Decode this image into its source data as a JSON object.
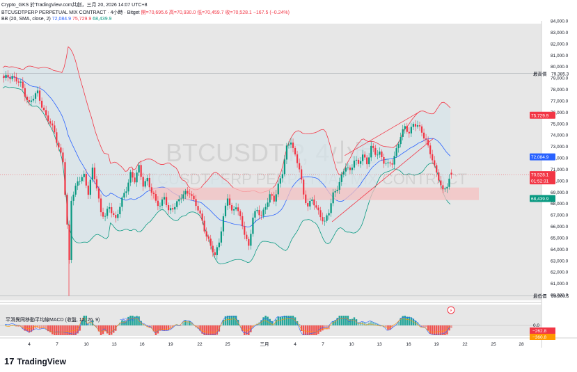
{
  "header": {
    "publisher_line": "Crypto_GKS 於TradingView.com共創，三月 20, 2026 14:07 UTC+8"
  },
  "symbol_line": {
    "name": "BTCUSDTPERP PERPETUAL MIX CONTRACT · 4小時 · Bitget",
    "open": "開=70,695.6",
    "high": "高=70,930.0",
    "low": "低=70,459.7",
    "close": "收=70,528.1",
    "change": "−167.5 (−0.24%)"
  },
  "bb_line": {
    "label": "BB (20, SMA, close, 2)",
    "basis": "72,084.9",
    "upper": "75,729.9",
    "lower": "68,439.9"
  },
  "watermark": {
    "big": "BTCUSDT.P, 4小時",
    "small": "BTCUSDTPERP PERPETUAL MIX CONTRACT"
  },
  "price_axis": {
    "ticks": [
      "84,000.0",
      "83,000.0",
      "82,000.0",
      "81,000.0",
      "80,000.0",
      "79,000.0",
      "78,000.0",
      "77,000.0",
      "76,000.0",
      "75,000.0",
      "74,000.0",
      "73,000.0",
      "72,000.0",
      "71,000.0",
      "70,000.0",
      "69,000.0",
      "68,000.0",
      "67,000.0",
      "66,000.0",
      "65,000.0",
      "64,000.0",
      "63,000.0",
      "62,000.0",
      "61,000.0",
      "60,000.0"
    ],
    "high_label": "最高價",
    "high_value": "79,385.3",
    "low_label": "最低價",
    "low_value": "59,900.5",
    "upper_badge": "75,729.9",
    "basis_badge": "72,084.9",
    "close_badge": "70,528.1",
    "countdown_badge": "01:52:31",
    "lower_badge": "68,439.9"
  },
  "macd": {
    "title": "平滑異同移動平均線MACD (收盤, 12, 26, 9)",
    "marker_value": "−623.5",
    "axis_tick": "0.0",
    "badge_red": "−262.8",
    "badge_orange": "−360.8"
  },
  "time_axis": {
    "ticks": [
      "4",
      "7",
      "10",
      "13",
      "16",
      "19",
      "22",
      "25",
      "三月",
      "4",
      "7",
      "10",
      "13",
      "16",
      "19",
      "22",
      "25",
      "28"
    ]
  },
  "branding": {
    "name": "TradingView"
  },
  "colors": {
    "up": "#089981",
    "down": "#f23645",
    "basis": "#2962ff",
    "upper": "#f23645",
    "lower": "#089981",
    "band_fill": "#d6e4ea",
    "zone": "#f5c0c0",
    "chart_bg": "#e6e6e6"
  },
  "chart_data": {
    "type": "candlestick",
    "title": "BTCUSDT.P, 4小時",
    "ylim": [
      59500,
      84500
    ],
    "price_path": [
      [
        0,
        78900
      ],
      [
        4,
        79200
      ],
      [
        8,
        78400
      ],
      [
        12,
        76800
      ],
      [
        16,
        77700
      ],
      [
        20,
        75600
      ],
      [
        24,
        74300
      ],
      [
        28,
        71600
      ],
      [
        30,
        66000
      ],
      [
        31,
        63000
      ],
      [
        32,
        68500
      ],
      [
        35,
        69800
      ],
      [
        38,
        70500
      ],
      [
        40,
        69000
      ],
      [
        42,
        70900
      ],
      [
        44,
        69400
      ],
      [
        46,
        67300
      ],
      [
        48,
        66900
      ],
      [
        50,
        67600
      ],
      [
        53,
        66700
      ],
      [
        55,
        67800
      ],
      [
        58,
        69200
      ],
      [
        60,
        70700
      ],
      [
        62,
        70000
      ],
      [
        64,
        71100
      ],
      [
        66,
        69700
      ],
      [
        68,
        70200
      ],
      [
        70,
        68900
      ],
      [
        72,
        68200
      ],
      [
        74,
        67900
      ],
      [
        76,
        68600
      ],
      [
        78,
        67200
      ],
      [
        80,
        67700
      ],
      [
        83,
        68300
      ],
      [
        86,
        68900
      ],
      [
        88,
        69100
      ],
      [
        90,
        68200
      ],
      [
        92,
        67400
      ],
      [
        94,
        66500
      ],
      [
        96,
        65200
      ],
      [
        98,
        64200
      ],
      [
        100,
        63400
      ],
      [
        102,
        64800
      ],
      [
        104,
        66700
      ],
      [
        106,
        68500
      ],
      [
        108,
        67300
      ],
      [
        110,
        67900
      ],
      [
        112,
        66600
      ],
      [
        114,
        65400
      ],
      [
        116,
        64300
      ],
      [
        118,
        66800
      ],
      [
        120,
        67300
      ],
      [
        122,
        67000
      ],
      [
        124,
        67800
      ],
      [
        126,
        68600
      ],
      [
        128,
        68300
      ],
      [
        130,
        69700
      ],
      [
        132,
        70700
      ],
      [
        134,
        72800
      ],
      [
        136,
        73600
      ],
      [
        138,
        72200
      ],
      [
        140,
        71000
      ],
      [
        142,
        68700
      ],
      [
        144,
        67900
      ],
      [
        146,
        68300
      ],
      [
        148,
        67500
      ],
      [
        150,
        67000
      ],
      [
        152,
        66400
      ],
      [
        154,
        67200
      ],
      [
        156,
        68800
      ],
      [
        158,
        69500
      ],
      [
        160,
        70300
      ],
      [
        162,
        71200
      ],
      [
        164,
        70900
      ],
      [
        166,
        71900
      ],
      [
        168,
        71300
      ],
      [
        170,
        72300
      ],
      [
        172,
        71600
      ],
      [
        174,
        72900
      ],
      [
        176,
        72300
      ],
      [
        178,
        72500
      ],
      [
        180,
        71700
      ],
      [
        182,
        71300
      ],
      [
        184,
        71600
      ],
      [
        186,
        72800
      ],
      [
        188,
        73900
      ],
      [
        190,
        74600
      ],
      [
        192,
        74300
      ],
      [
        194,
        75000
      ],
      [
        196,
        74700
      ],
      [
        198,
        74300
      ],
      [
        200,
        73600
      ],
      [
        202,
        72400
      ],
      [
        204,
        71100
      ],
      [
        206,
        70300
      ],
      [
        208,
        69100
      ],
      [
        210,
        69500
      ],
      [
        212,
        70500
      ]
    ],
    "last_candle": {
      "open": 70695.6,
      "high": 70930.0,
      "low": 70459.7,
      "close": 70528.1
    },
    "bollinger": {
      "length": 20,
      "basis": 72084.9,
      "upper": 75729.9,
      "lower": 68439.9
    },
    "horizontal_lines": [
      79385.3,
      59900.5,
      70528.1
    ],
    "zone": {
      "top": 69400,
      "bottom": 68300
    },
    "channel": {
      "upper": [
        [
          162,
          72200
        ],
        [
          198,
          76100
        ]
      ],
      "lower": [
        [
          156,
          66400
        ],
        [
          204,
          73700
        ]
      ]
    },
    "macd_values_sample": [
      -623.5,
      -262.8,
      -360.8
    ]
  }
}
